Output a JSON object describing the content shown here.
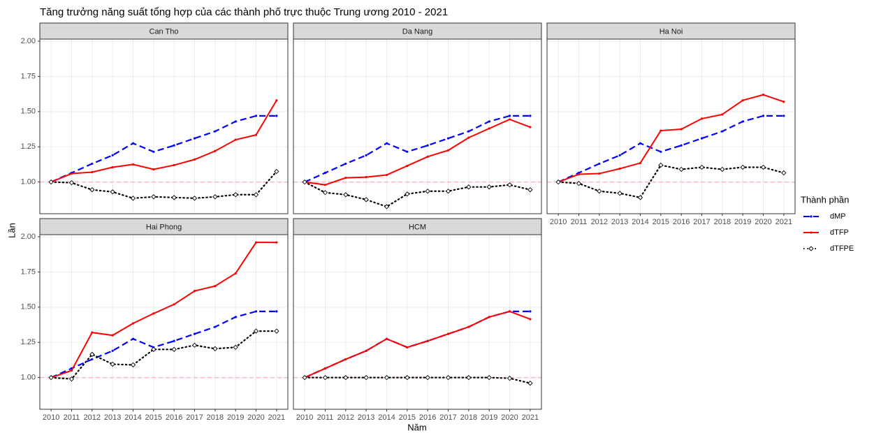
{
  "figure": {
    "title": "Tăng trưởng năng suất tổng hợp của các thành phố trực thuộc Trung ương 2010 - 2021",
    "xlabel": "Năm",
    "ylabel": "Lần",
    "legend_title": "Thành phần"
  },
  "chart_data": [
    {
      "type": "line",
      "title": "Can Tho",
      "x": [
        2010,
        2011,
        2012,
        2013,
        2014,
        2015,
        2016,
        2017,
        2018,
        2019,
        2020,
        2021
      ],
      "series": [
        {
          "name": "dMP",
          "color": "#0000ff",
          "linestyle": "dashed",
          "marker": "dot",
          "values": [
            1.0,
            1.065,
            1.13,
            1.19,
            1.275,
            1.215,
            1.26,
            1.31,
            1.36,
            1.43,
            1.47,
            1.47
          ]
        },
        {
          "name": "dTFP",
          "color": "#ff0000",
          "linestyle": "solid",
          "marker": "dot",
          "values": [
            1.0,
            1.06,
            1.07,
            1.105,
            1.125,
            1.09,
            1.12,
            1.16,
            1.22,
            1.3,
            1.335,
            1.58
          ]
        },
        {
          "name": "dTFPE",
          "color": "#000000",
          "linestyle": "dotted",
          "marker": "diamond",
          "values": [
            1.0,
            0.995,
            0.945,
            0.93,
            0.885,
            0.895,
            0.89,
            0.885,
            0.895,
            0.91,
            0.91,
            1.075
          ]
        }
      ],
      "hline": {
        "value": 1,
        "color": "#ffb6c1"
      },
      "xlim": [
        2009.45,
        2021.55
      ],
      "xticks": [
        2010,
        2011,
        2012,
        2013,
        2014,
        2015,
        2016,
        2017,
        2018,
        2019,
        2020,
        2021
      ],
      "ylim": [
        0.775,
        2.015
      ],
      "yticks": [
        {
          "value": 1,
          "label": "1.00"
        },
        {
          "value": 1.25,
          "label": "1.25"
        },
        {
          "value": 1.5,
          "label": "1.50"
        },
        {
          "value": 1.75,
          "label": "1.75"
        },
        {
          "value": 2,
          "label": "2.00"
        }
      ],
      "grid": true
    },
    {
      "type": "line",
      "title": "Da Nang",
      "x": [
        2010,
        2011,
        2012,
        2013,
        2014,
        2015,
        2016,
        2017,
        2018,
        2019,
        2020,
        2021
      ],
      "series": [
        {
          "name": "dMP",
          "color": "#0000ff",
          "linestyle": "dashed",
          "marker": "dot",
          "values": [
            1.0,
            1.065,
            1.13,
            1.19,
            1.275,
            1.215,
            1.26,
            1.31,
            1.36,
            1.43,
            1.47,
            1.47
          ]
        },
        {
          "name": "dTFP",
          "color": "#ff0000",
          "linestyle": "solid",
          "marker": "dot",
          "values": [
            1.0,
            0.98,
            1.03,
            1.035,
            1.05,
            1.115,
            1.18,
            1.225,
            1.315,
            1.38,
            1.445,
            1.39
          ]
        },
        {
          "name": "dTFPE",
          "color": "#000000",
          "linestyle": "dotted",
          "marker": "diamond",
          "values": [
            1.0,
            0.925,
            0.91,
            0.875,
            0.825,
            0.915,
            0.935,
            0.935,
            0.965,
            0.965,
            0.98,
            0.945
          ]
        }
      ],
      "hline": {
        "value": 1,
        "color": "#ffb6c1"
      },
      "xlim": [
        2009.45,
        2021.55
      ],
      "xticks": [
        2010,
        2011,
        2012,
        2013,
        2014,
        2015,
        2016,
        2017,
        2018,
        2019,
        2020,
        2021
      ],
      "ylim": [
        0.775,
        2.015
      ],
      "yticks": [
        {
          "value": 1,
          "label": "1.00"
        },
        {
          "value": 1.25,
          "label": "1.25"
        },
        {
          "value": 1.5,
          "label": "1.50"
        },
        {
          "value": 1.75,
          "label": "1.75"
        },
        {
          "value": 2,
          "label": "2.00"
        }
      ],
      "grid": true
    },
    {
      "type": "line",
      "title": "Ha Noi",
      "x": [
        2010,
        2011,
        2012,
        2013,
        2014,
        2015,
        2016,
        2017,
        2018,
        2019,
        2020,
        2021
      ],
      "series": [
        {
          "name": "dMP",
          "color": "#0000ff",
          "linestyle": "dashed",
          "marker": "dot",
          "values": [
            1.0,
            1.065,
            1.13,
            1.19,
            1.275,
            1.215,
            1.26,
            1.31,
            1.36,
            1.43,
            1.47,
            1.47
          ]
        },
        {
          "name": "dTFP",
          "color": "#ff0000",
          "linestyle": "solid",
          "marker": "dot",
          "values": [
            1.0,
            1.055,
            1.06,
            1.095,
            1.135,
            1.365,
            1.375,
            1.45,
            1.48,
            1.58,
            1.62,
            1.57
          ]
        },
        {
          "name": "dTFPE",
          "color": "#000000",
          "linestyle": "dotted",
          "marker": "diamond",
          "values": [
            1.0,
            0.99,
            0.935,
            0.92,
            0.89,
            1.12,
            1.09,
            1.105,
            1.09,
            1.105,
            1.105,
            1.065
          ]
        }
      ],
      "hline": {
        "value": 1,
        "color": "#ffb6c1"
      },
      "xlim": [
        2009.45,
        2021.55
      ],
      "xticks": [
        2010,
        2011,
        2012,
        2013,
        2014,
        2015,
        2016,
        2017,
        2018,
        2019,
        2020,
        2021
      ],
      "ylim": [
        0.775,
        2.015
      ],
      "yticks": [
        {
          "value": 1,
          "label": "1.00"
        },
        {
          "value": 1.25,
          "label": "1.25"
        },
        {
          "value": 1.5,
          "label": "1.50"
        },
        {
          "value": 1.75,
          "label": "1.75"
        },
        {
          "value": 2,
          "label": "2.00"
        }
      ],
      "grid": true
    },
    {
      "type": "line",
      "title": "Hai Phong",
      "x": [
        2010,
        2011,
        2012,
        2013,
        2014,
        2015,
        2016,
        2017,
        2018,
        2019,
        2020,
        2021
      ],
      "series": [
        {
          "name": "dMP",
          "color": "#0000ff",
          "linestyle": "dashed",
          "marker": "dot",
          "values": [
            1.0,
            1.065,
            1.13,
            1.19,
            1.275,
            1.215,
            1.26,
            1.31,
            1.36,
            1.43,
            1.47,
            1.47
          ]
        },
        {
          "name": "dTFP",
          "color": "#ff0000",
          "linestyle": "solid",
          "marker": "dot",
          "values": [
            1.0,
            1.05,
            1.32,
            1.3,
            1.385,
            1.455,
            1.52,
            1.615,
            1.65,
            1.74,
            1.96,
            1.96
          ]
        },
        {
          "name": "dTFPE",
          "color": "#000000",
          "linestyle": "dotted",
          "marker": "diamond",
          "values": [
            1.0,
            0.99,
            1.165,
            1.095,
            1.09,
            1.2,
            1.2,
            1.23,
            1.205,
            1.215,
            1.33,
            1.33
          ]
        }
      ],
      "hline": {
        "value": 1,
        "color": "#ffb6c1"
      },
      "xlim": [
        2009.45,
        2021.55
      ],
      "xticks": [
        2010,
        2011,
        2012,
        2013,
        2014,
        2015,
        2016,
        2017,
        2018,
        2019,
        2020,
        2021
      ],
      "ylim": [
        0.775,
        2.015
      ],
      "yticks": [
        {
          "value": 1,
          "label": "1.00"
        },
        {
          "value": 1.25,
          "label": "1.25"
        },
        {
          "value": 1.5,
          "label": "1.50"
        },
        {
          "value": 1.75,
          "label": "1.75"
        },
        {
          "value": 2,
          "label": "2.00"
        }
      ],
      "grid": true
    },
    {
      "type": "line",
      "title": "HCM",
      "x": [
        2010,
        2011,
        2012,
        2013,
        2014,
        2015,
        2016,
        2017,
        2018,
        2019,
        2020,
        2021
      ],
      "series": [
        {
          "name": "dMP",
          "color": "#0000ff",
          "linestyle": "dashed",
          "marker": "dot",
          "values": [
            1.0,
            1.065,
            1.13,
            1.19,
            1.275,
            1.215,
            1.26,
            1.31,
            1.36,
            1.43,
            1.47,
            1.47
          ]
        },
        {
          "name": "dTFP",
          "color": "#ff0000",
          "linestyle": "solid",
          "marker": "dot",
          "values": [
            1.0,
            1.065,
            1.13,
            1.19,
            1.275,
            1.215,
            1.26,
            1.31,
            1.36,
            1.43,
            1.47,
            1.415
          ]
        },
        {
          "name": "dTFPE",
          "color": "#000000",
          "linestyle": "dotted",
          "marker": "diamond",
          "values": [
            1.0,
            1.0,
            1.0,
            1.0,
            1.0,
            1.0,
            1.0,
            1.0,
            1.0,
            1.0,
            0.995,
            0.96
          ]
        }
      ],
      "hline": {
        "value": 1,
        "color": "#ffb6c1"
      },
      "xlim": [
        2009.45,
        2021.55
      ],
      "xticks": [
        2010,
        2011,
        2012,
        2013,
        2014,
        2015,
        2016,
        2017,
        2018,
        2019,
        2020,
        2021
      ],
      "ylim": [
        0.775,
        2.015
      ],
      "yticks": [
        {
          "value": 1,
          "label": "1.00"
        },
        {
          "value": 1.25,
          "label": "1.25"
        },
        {
          "value": 1.5,
          "label": "1.50"
        },
        {
          "value": 1.75,
          "label": "1.75"
        },
        {
          "value": 2,
          "label": "2.00"
        }
      ],
      "grid": true
    }
  ]
}
